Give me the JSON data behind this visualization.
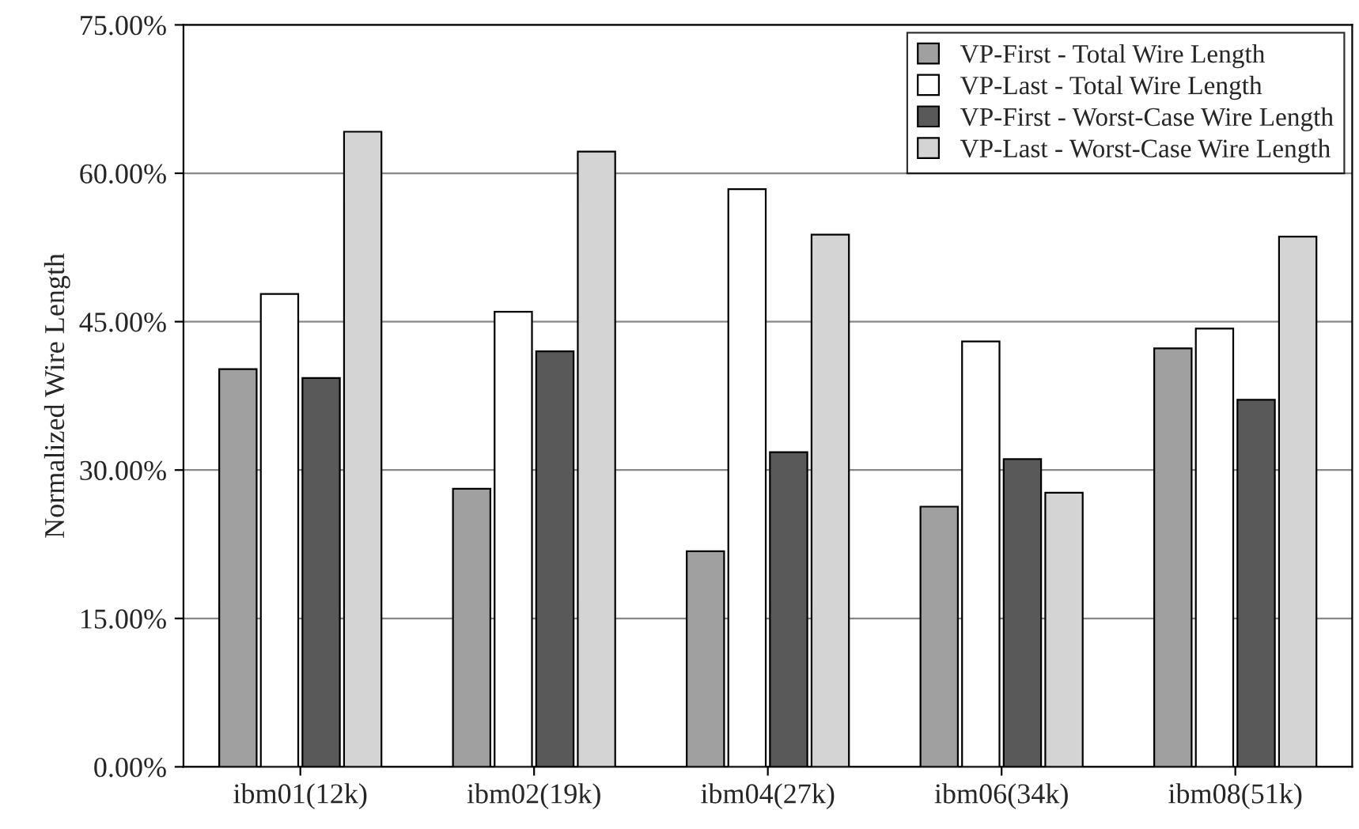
{
  "chart_data": {
    "type": "bar",
    "ylabel": "Normalized Wire Length",
    "categories": [
      "ibm01(12k)",
      "ibm02(19k)",
      "ibm04(27k)",
      "ibm06(34k)",
      "ibm08(51k)"
    ],
    "series": [
      {
        "name": "VP-First - Total Wire Length",
        "color": "#a0a0a0",
        "values": [
          40.2,
          28.1,
          21.8,
          26.3,
          42.3
        ]
      },
      {
        "name": "VP-Last - Total Wire Length",
        "color": "#ffffff",
        "values": [
          47.8,
          46.0,
          58.4,
          43.0,
          44.3
        ]
      },
      {
        "name": "VP-First - Worst-Case Wire Length",
        "color": "#595959",
        "values": [
          39.3,
          42.0,
          31.8,
          31.1,
          37.1
        ]
      },
      {
        "name": "VP-Last - Worst-Case Wire Length",
        "color": "#d4d4d4",
        "values": [
          64.2,
          62.2,
          53.8,
          27.7,
          53.6
        ]
      }
    ],
    "ylim": [
      0,
      75
    ],
    "yticks": [
      {
        "value": 0,
        "label": "0.00%"
      },
      {
        "value": 15,
        "label": "15.00%"
      },
      {
        "value": 30,
        "label": "30.00%"
      },
      {
        "value": 45,
        "label": "45.00%"
      },
      {
        "value": 60,
        "label": "60.00%"
      },
      {
        "value": 75,
        "label": "75.00%"
      }
    ],
    "grid": "y",
    "legend": "top right"
  }
}
